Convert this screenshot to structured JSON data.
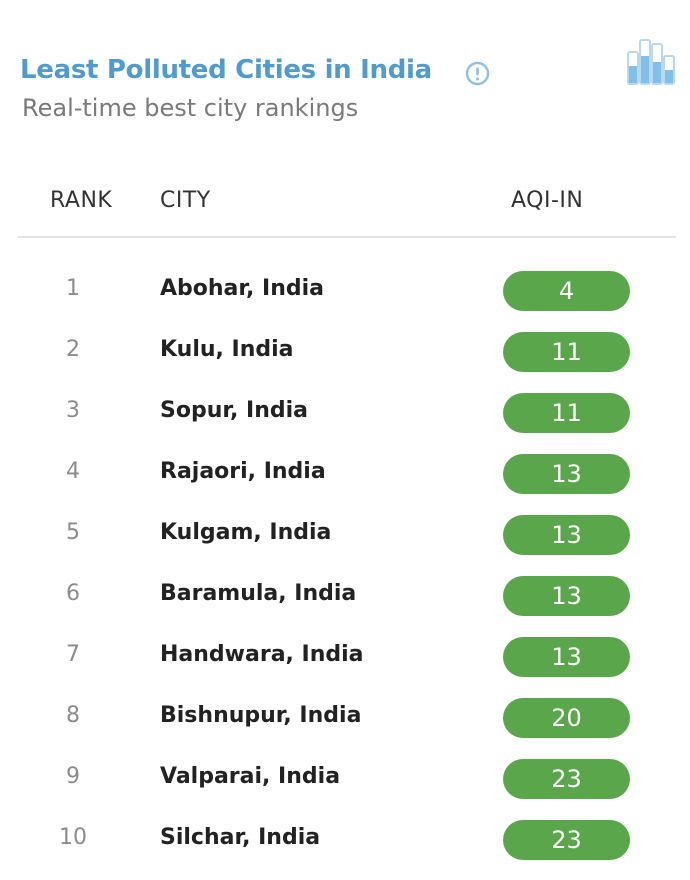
{
  "header": {
    "title": "Least Polluted Cities in India",
    "subtitle": "Real-time best city rankings",
    "info_icon": "info-circle-icon",
    "chart_icon": "bar-chart-icon"
  },
  "table": {
    "columns": {
      "rank": "RANK",
      "city": "CITY",
      "aqi": "AQI-IN"
    },
    "rows": [
      {
        "rank": "1",
        "city": "Abohar, India",
        "aqi": "4"
      },
      {
        "rank": "2",
        "city": "Kulu, India",
        "aqi": "11"
      },
      {
        "rank": "3",
        "city": "Sopur, India",
        "aqi": "11"
      },
      {
        "rank": "4",
        "city": "Rajaori, India",
        "aqi": "13"
      },
      {
        "rank": "5",
        "city": "Kulgam, India",
        "aqi": "13"
      },
      {
        "rank": "6",
        "city": "Baramula, India",
        "aqi": "13"
      },
      {
        "rank": "7",
        "city": "Handwara, India",
        "aqi": "13"
      },
      {
        "rank": "8",
        "city": "Bishnupur, India",
        "aqi": "20"
      },
      {
        "rank": "9",
        "city": "Valparai, India",
        "aqi": "23"
      },
      {
        "rank": "10",
        "city": "Silchar, India",
        "aqi": "23"
      }
    ]
  },
  "colors": {
    "title": "#4f9bd0",
    "subtitle": "#7a7a7a",
    "aqi_good": "#5aa64a",
    "divider": "#e4e4e4"
  }
}
